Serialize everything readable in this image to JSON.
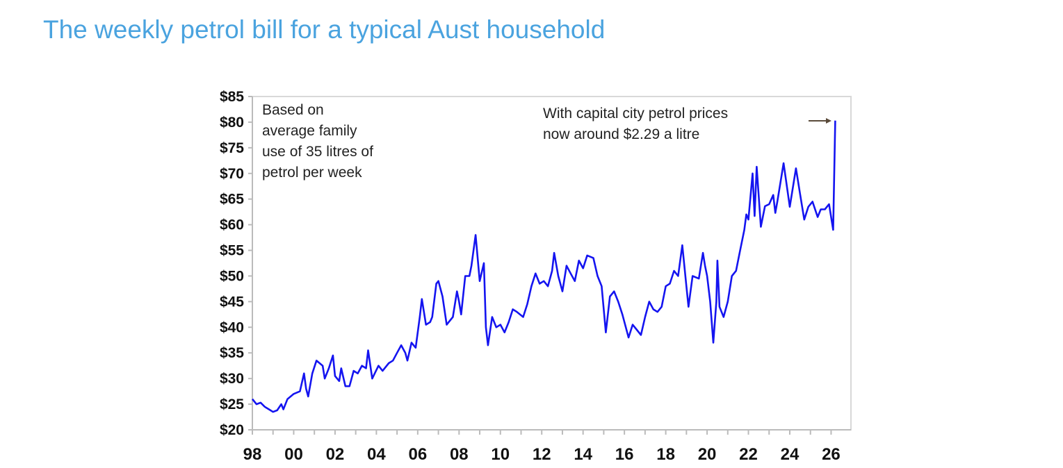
{
  "page": {
    "title": "The weekly petrol bill for a typical Aust household"
  },
  "chart_data": {
    "type": "line",
    "title": "",
    "xlabel": "",
    "ylabel": "",
    "xlim": [
      1998,
      2026.9
    ],
    "ylim": [
      20,
      85
    ],
    "y_ticks": [
      "$20",
      "$25",
      "$30",
      "$35",
      "$40",
      "$45",
      "$50",
      "$55",
      "$60",
      "$65",
      "$70",
      "$75",
      "$80",
      "$85"
    ],
    "x_ticks": [
      "98",
      "00",
      "02",
      "04",
      "06",
      "08",
      "10",
      "12",
      "14",
      "16",
      "18",
      "20",
      "22",
      "24",
      "26"
    ],
    "grid": false,
    "line_color": "#1414f0",
    "annotations": [
      "Based on",
      "average family",
      "use of 35 litres of",
      "petrol per week",
      "With capital city petrol prices",
      "now around $2.29 a litre"
    ],
    "series": [
      {
        "x": [
          1998.0,
          1998.2,
          1998.4,
          1998.6,
          1998.8,
          1999.0,
          1999.2,
          1999.4,
          1999.5,
          1999.7,
          2000.0,
          2000.3,
          2000.5,
          2000.6,
          2000.7,
          2000.9,
          2001.1,
          2001.4,
          2001.5,
          2001.7,
          2001.9,
          2002.0,
          2002.2,
          2002.3,
          2002.5,
          2002.7,
          2002.9,
          2003.1,
          2003.3,
          2003.5,
          2003.6,
          2003.8,
          2004.1,
          2004.3,
          2004.6,
          2004.8,
          2005.0,
          2005.2,
          2005.4,
          2005.5,
          2005.7,
          2005.9,
          2006.1,
          2006.2,
          2006.4,
          2006.6,
          2006.7,
          2006.9,
          2007.0,
          2007.2,
          2007.4,
          2007.5,
          2007.7,
          2007.9,
          2008.0,
          2008.1,
          2008.3,
          2008.5,
          2008.6,
          2008.8,
          2009.0,
          2009.2,
          2009.3,
          2009.4,
          2009.6,
          2009.8,
          2010.0,
          2010.2,
          2010.4,
          2010.6,
          2010.8,
          2011.1,
          2011.3,
          2011.5,
          2011.7,
          2011.9,
          2012.1,
          2012.3,
          2012.5,
          2012.6,
          2012.8,
          2013.0,
          2013.2,
          2013.4,
          2013.6,
          2013.8,
          2014.0,
          2014.2,
          2014.5,
          2014.7,
          2014.9,
          2015.1,
          2015.3,
          2015.5,
          2015.7,
          2015.9,
          2016.2,
          2016.4,
          2016.6,
          2016.8,
          2017.0,
          2017.2,
          2017.4,
          2017.6,
          2017.8,
          2018.0,
          2018.2,
          2018.4,
          2018.6,
          2018.8,
          2019.0,
          2019.1,
          2019.3,
          2019.6,
          2019.8,
          2019.9,
          2020.0,
          2020.15,
          2020.3,
          2020.45,
          2020.5,
          2020.6,
          2020.8,
          2021.0,
          2021.2,
          2021.4,
          2021.6,
          2021.8,
          2021.9,
          2022.0,
          2022.2,
          2022.3,
          2022.4,
          2022.6,
          2022.8,
          2023.0,
          2023.2,
          2023.3,
          2023.4,
          2023.7,
          2024.0,
          2024.3,
          2024.5,
          2024.7,
          2024.9,
          2025.1,
          2025.35,
          2025.5,
          2025.7,
          2025.9,
          2026.1,
          2026.2
        ],
        "y": [
          26,
          25,
          25.3,
          24.5,
          24,
          23.5,
          23.8,
          25,
          24,
          26,
          27,
          27.5,
          31,
          28,
          26.5,
          31,
          33.5,
          32.5,
          30,
          32,
          34.5,
          30.5,
          29.5,
          32,
          28.5,
          28.5,
          31.5,
          31,
          32.5,
          32,
          35.5,
          30,
          32.5,
          31.5,
          33,
          33.5,
          35,
          36.5,
          35,
          33.5,
          37,
          36,
          42,
          45.5,
          40.5,
          41,
          42,
          48.5,
          49,
          46,
          40.5,
          41,
          42,
          47,
          45,
          42.5,
          50,
          50,
          52,
          58,
          49,
          52.5,
          40,
          36.5,
          42,
          40,
          40.5,
          39,
          41,
          43.5,
          43,
          42,
          44.5,
          48,
          50.5,
          48.5,
          49,
          48,
          51,
          54.5,
          50,
          47,
          52,
          50.5,
          49,
          53,
          51.5,
          54,
          53.5,
          50,
          48,
          39,
          46,
          47,
          45,
          42.5,
          38,
          40.5,
          39.5,
          38.5,
          42,
          45,
          43.5,
          43,
          44,
          48,
          48.5,
          51,
          50,
          56,
          48,
          44,
          50,
          49.5,
          54.5,
          52,
          50,
          45,
          37,
          45,
          53,
          44,
          42,
          45,
          50,
          51,
          55,
          59,
          62,
          61,
          70,
          61.7,
          71.3,
          59.6,
          63.6,
          64,
          65.8,
          62.3,
          64.5,
          72,
          63.5,
          71,
          66,
          61,
          63.5,
          64.5,
          61.5,
          63,
          63,
          64,
          59,
          80.3
        ]
      }
    ]
  }
}
